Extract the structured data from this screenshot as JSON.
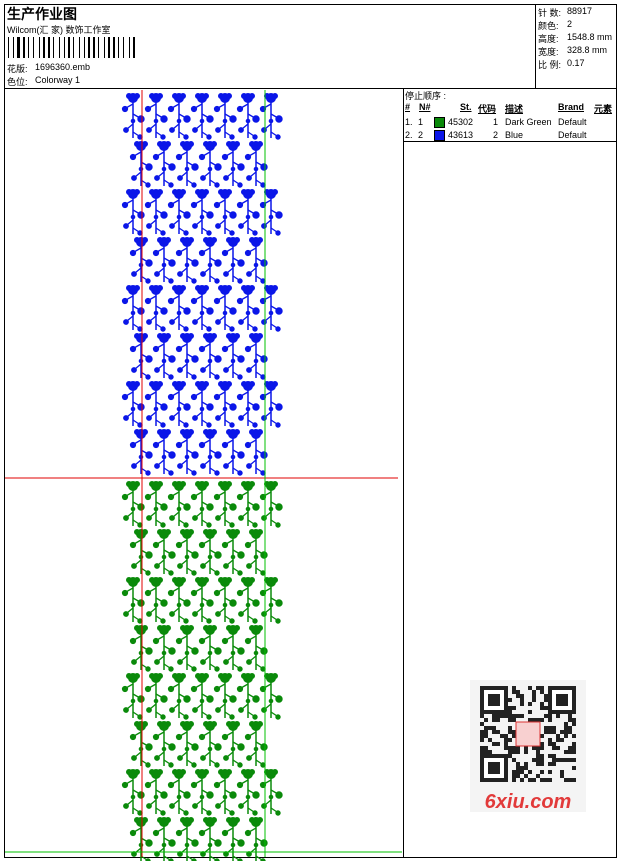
{
  "header": {
    "title": "生产作业图",
    "studio": "Wilcom(汇 家) 数饰工作室",
    "design_label": "花版:",
    "design": "1696360.emb",
    "colorway_label": "色位:",
    "colorway": "Colorway 1"
  },
  "summary": [
    {
      "label": "针 数:",
      "value": "88917"
    },
    {
      "label": "颜色:",
      "value": "2"
    },
    {
      "label": "高度:",
      "value": "1548.8 mm"
    },
    {
      "label": "宽度:",
      "value": "328.8 mm"
    },
    {
      "label": "比 例:",
      "value": "0.17"
    }
  ],
  "table": {
    "title": "停止顺序 :",
    "headers": [
      "#",
      "N#",
      "St.",
      "代码",
      "描述",
      "Brand",
      "元素"
    ],
    "rows": [
      {
        "index": "1.",
        "needle": "1",
        "color": "#0a8a0a",
        "stitches": "45302",
        "code": "1",
        "description": "Dark Green",
        "brand": "Default"
      },
      {
        "index": "2.",
        "needle": "2",
        "color": "#0b16e8",
        "stitches": "43613",
        "code": "2",
        "description": "Blue",
        "brand": "Default"
      }
    ]
  },
  "watermark": "6xiu.com"
}
